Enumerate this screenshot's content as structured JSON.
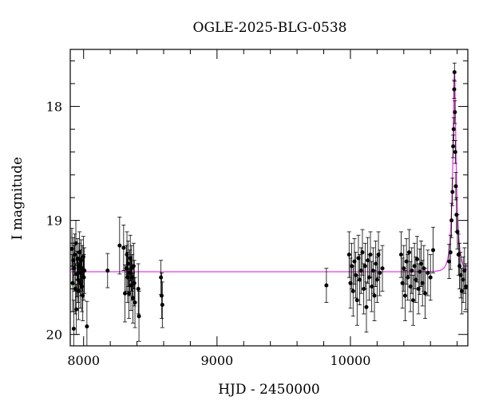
{
  "chart_data": {
    "type": "scatter",
    "title": "OGLE-2025-BLG-0538",
    "xlabel": "HJD - 2450000",
    "ylabel": "I magnitude",
    "xlim": [
      7900,
      10880
    ],
    "ylim": [
      20.1,
      17.5
    ],
    "y_inverted": true,
    "xticks": [
      8000,
      9000,
      10000
    ],
    "yticks": [
      18,
      19,
      20
    ],
    "grid": false,
    "colors": {
      "points": "#000000",
      "model": "#e040e0"
    },
    "baseline_mag": 19.45,
    "series": [
      {
        "kind": "points_with_errorbars",
        "points": [
          [
            7912,
            19.25,
            0.18
          ],
          [
            7918,
            19.55,
            0.25
          ],
          [
            7922,
            19.35,
            0.2
          ],
          [
            7926,
            19.95,
            0.25
          ],
          [
            7930,
            19.42,
            0.2
          ],
          [
            7934,
            19.3,
            0.18
          ],
          [
            7938,
            19.6,
            0.22
          ],
          [
            7942,
            19.2,
            0.2
          ],
          [
            7946,
            19.78,
            0.22
          ],
          [
            7950,
            19.47,
            0.2
          ],
          [
            7954,
            19.34,
            0.18
          ],
          [
            7958,
            19.52,
            0.2
          ],
          [
            7962,
            19.62,
            0.25
          ],
          [
            7966,
            19.4,
            0.2
          ],
          [
            7970,
            19.28,
            0.18
          ],
          [
            7974,
            19.55,
            0.22
          ],
          [
            7978,
            19.46,
            0.2
          ],
          [
            7982,
            19.35,
            0.18
          ],
          [
            7986,
            19.58,
            0.22
          ],
          [
            7990,
            19.42,
            0.2
          ],
          [
            7994,
            19.66,
            0.22
          ],
          [
            7998,
            19.32,
            0.18
          ],
          [
            8002,
            19.5,
            0.2
          ],
          [
            8006,
            19.44,
            0.2
          ],
          [
            8025,
            19.93,
            0.22
          ],
          [
            8180,
            19.44,
            0.15
          ],
          [
            8270,
            19.22,
            0.25
          ],
          [
            8300,
            19.24,
            0.2
          ],
          [
            8310,
            19.64,
            0.25
          ],
          [
            8320,
            19.42,
            0.2
          ],
          [
            8325,
            19.3,
            0.2
          ],
          [
            8330,
            19.5,
            0.22
          ],
          [
            8335,
            19.38,
            0.2
          ],
          [
            8340,
            19.64,
            0.22
          ],
          [
            8345,
            19.46,
            0.2
          ],
          [
            8350,
            19.33,
            0.2
          ],
          [
            8355,
            19.57,
            0.22
          ],
          [
            8360,
            19.42,
            0.2
          ],
          [
            8365,
            19.5,
            0.2
          ],
          [
            8370,
            19.68,
            0.22
          ],
          [
            8375,
            19.4,
            0.2
          ],
          [
            8380,
            19.55,
            0.2
          ],
          [
            8385,
            19.72,
            0.22
          ],
          [
            8410,
            19.6,
            0.22
          ],
          [
            8415,
            19.84,
            0.22
          ],
          [
            8580,
            19.5,
            0.15
          ],
          [
            8585,
            19.66,
            0.2
          ],
          [
            8590,
            19.74,
            0.2
          ],
          [
            9820,
            19.57,
            0.15
          ],
          [
            9990,
            19.3,
            0.2
          ],
          [
            10000,
            19.55,
            0.22
          ],
          [
            10010,
            19.4,
            0.2
          ],
          [
            10020,
            19.62,
            0.22
          ],
          [
            10030,
            19.36,
            0.2
          ],
          [
            10040,
            19.48,
            0.2
          ],
          [
            10050,
            19.7,
            0.22
          ],
          [
            10060,
            19.33,
            0.2
          ],
          [
            10070,
            19.52,
            0.22
          ],
          [
            10080,
            19.44,
            0.2
          ],
          [
            10090,
            19.28,
            0.2
          ],
          [
            10100,
            19.6,
            0.22
          ],
          [
            10110,
            19.4,
            0.2
          ],
          [
            10120,
            19.76,
            0.22
          ],
          [
            10130,
            19.35,
            0.2
          ],
          [
            10140,
            19.5,
            0.2
          ],
          [
            10150,
            19.3,
            0.2
          ],
          [
            10160,
            19.58,
            0.22
          ],
          [
            10170,
            19.44,
            0.2
          ],
          [
            10180,
            19.66,
            0.22
          ],
          [
            10190,
            19.38,
            0.2
          ],
          [
            10200,
            19.52,
            0.2
          ],
          [
            10210,
            19.3,
            0.2
          ],
          [
            10220,
            19.46,
            0.2
          ],
          [
            10240,
            19.42,
            0.2
          ],
          [
            10380,
            19.3,
            0.2
          ],
          [
            10390,
            19.55,
            0.22
          ],
          [
            10400,
            19.42,
            0.2
          ],
          [
            10410,
            19.66,
            0.22
          ],
          [
            10420,
            19.36,
            0.2
          ],
          [
            10430,
            19.5,
            0.2
          ],
          [
            10440,
            19.28,
            0.2
          ],
          [
            10450,
            19.58,
            0.22
          ],
          [
            10460,
            19.44,
            0.2
          ],
          [
            10470,
            19.7,
            0.22
          ],
          [
            10480,
            19.4,
            0.2
          ],
          [
            10490,
            19.52,
            0.2
          ],
          [
            10500,
            19.34,
            0.2
          ],
          [
            10510,
            19.6,
            0.22
          ],
          [
            10520,
            19.45,
            0.2
          ],
          [
            10530,
            19.38,
            0.2
          ],
          [
            10540,
            19.55,
            0.2
          ],
          [
            10550,
            19.42,
            0.2
          ],
          [
            10560,
            19.64,
            0.22
          ],
          [
            10580,
            19.46,
            0.2
          ],
          [
            10600,
            19.5,
            0.2
          ],
          [
            10620,
            19.26,
            0.2
          ],
          [
            10740,
            19.36,
            0.15
          ],
          [
            10750,
            19.28,
            0.15
          ],
          [
            10758,
            19.0,
            0.15
          ],
          [
            10765,
            18.75,
            0.12
          ],
          [
            10770,
            18.35,
            0.1
          ],
          [
            10774,
            18.2,
            0.1
          ],
          [
            10778,
            17.85,
            0.08
          ],
          [
            10780,
            17.7,
            0.08
          ],
          [
            10783,
            18.05,
            0.1
          ],
          [
            10786,
            18.4,
            0.1
          ],
          [
            10790,
            18.7,
            0.12
          ],
          [
            10795,
            18.95,
            0.15
          ],
          [
            10802,
            19.1,
            0.15
          ],
          [
            10810,
            19.3,
            0.18
          ],
          [
            10818,
            19.4,
            0.2
          ],
          [
            10826,
            19.48,
            0.2
          ],
          [
            10835,
            19.62,
            0.2
          ],
          [
            10845,
            19.52,
            0.2
          ],
          [
            10855,
            19.44,
            0.2
          ],
          [
            10865,
            19.58,
            0.2
          ]
        ]
      },
      {
        "kind": "model_curve",
        "t0": 10780,
        "tE": 32
      }
    ]
  }
}
